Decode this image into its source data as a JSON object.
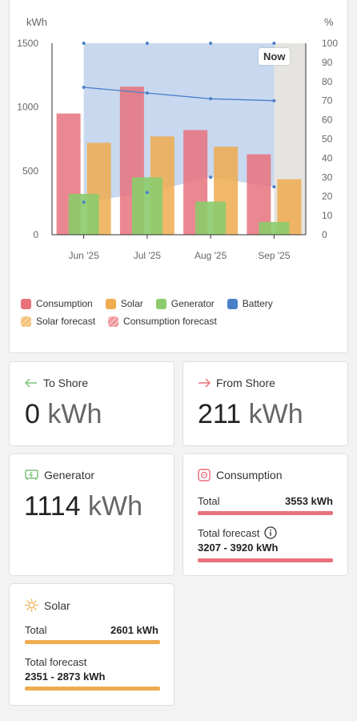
{
  "chart": {
    "left_unit": "kWh",
    "right_unit": "%",
    "now_label": "Now",
    "chart_data": {
      "type": "bar",
      "categories": [
        "Jun '25",
        "Jul '25",
        "Aug '25",
        "Sep '25"
      ],
      "ylim": [
        0,
        1500
      ],
      "y_ticks": [
        "1500",
        "1000",
        "500",
        "0"
      ],
      "y2lim": [
        0,
        100
      ],
      "y2_ticks": [
        "100",
        "90",
        "80",
        "70",
        "60",
        "50",
        "40",
        "30",
        "20",
        "10",
        "0"
      ],
      "series": [
        {
          "name": "Consumption",
          "color": "#e8727c",
          "values": [
            950,
            1160,
            820,
            630
          ]
        },
        {
          "name": "Solar",
          "color": "#efac4f",
          "values": [
            720,
            770,
            690,
            435
          ]
        },
        {
          "name": "Generator",
          "color": "#8ccb6c",
          "values": [
            320,
            450,
            260,
            100
          ]
        },
        {
          "name": "Battery",
          "color": "#4a7fc8",
          "axis": "right",
          "max_values": [
            100,
            100,
            100,
            100
          ],
          "avg_values": [
            77,
            74,
            71,
            70
          ],
          "min_values": [
            17,
            22,
            30,
            25
          ]
        }
      ],
      "forecast_month": "Sep '25"
    },
    "legend": [
      {
        "label": "Consumption",
        "color": "#e8727c",
        "style": "solid"
      },
      {
        "label": "Solar",
        "color": "#efac4f",
        "style": "solid"
      },
      {
        "label": "Generator",
        "color": "#8ccb6c",
        "style": "solid"
      },
      {
        "label": "Battery",
        "color": "#4a7fc8",
        "style": "solid"
      },
      {
        "label": "Solar forecast",
        "color": "#efac4f",
        "style": "hatch"
      },
      {
        "label": "Consumption forecast",
        "color": "#e8727c",
        "style": "hatch"
      }
    ]
  },
  "to_shore": {
    "title": "To Shore",
    "icon": "arrow-left-icon",
    "value": "0",
    "unit": "kWh",
    "color": "#7cc47a"
  },
  "from_shore": {
    "title": "From Shore",
    "icon": "arrow-right-icon",
    "value": "211",
    "unit": "kWh",
    "color": "#e8727c"
  },
  "generator": {
    "title": "Generator",
    "icon": "generator-icon",
    "value": "1114",
    "unit": "kWh",
    "color": "#7cc47a"
  },
  "consumption": {
    "title": "Consumption",
    "icon": "plug-icon",
    "color": "#e8727c",
    "total_label": "Total",
    "total_value": "3553 kWh",
    "forecast_label": "Total forecast",
    "forecast_value": "3207 - 3920 kWh"
  },
  "solar": {
    "title": "Solar",
    "icon": "sun-icon",
    "color": "#efac4f",
    "total_label": "Total",
    "total_value": "2601 kWh",
    "forecast_label": "Total forecast",
    "forecast_value": "2351 - 2873 kWh"
  }
}
